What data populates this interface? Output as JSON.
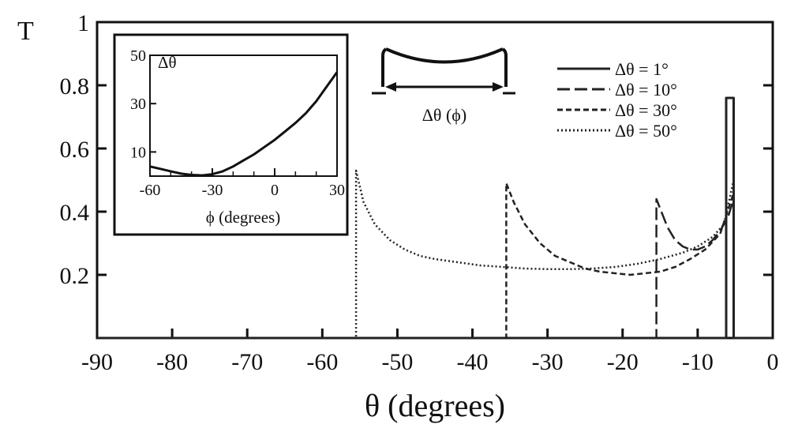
{
  "chart_data": {
    "type": "line",
    "xlabel": "θ (degrees)",
    "ylabel": "T",
    "xlim": [
      -90,
      0
    ],
    "ylim": [
      0,
      1
    ],
    "x_ticks": [
      -90,
      -80,
      -70,
      -60,
      -50,
      -40,
      -30,
      -20,
      -10,
      0
    ],
    "y_ticks": [
      1,
      0.8,
      0.6,
      0.4,
      0.2
    ],
    "y_tick_labels": [
      "1",
      "0.8",
      "0.6",
      "0.4",
      "0.2"
    ],
    "grid": false,
    "legend_position": "top-right",
    "series": [
      {
        "name": "Δθ = 1°",
        "style": "solid",
        "x": [
          -90,
          -6.2,
          -6.2,
          -6.0,
          -5.5,
          -5.2,
          -5.2,
          0
        ],
        "y": [
          0,
          0,
          0.76,
          0.76,
          0.76,
          0.76,
          0,
          0
        ]
      },
      {
        "name": "Δθ = 10°",
        "style": "long-dash",
        "x": [
          -90,
          -15.5,
          -15.5,
          -15.0,
          -14.0,
          -13.0,
          -12.0,
          -11.0,
          -10.0,
          -9.0,
          -8.0,
          -7.0,
          -6.0,
          -5.2,
          -5.2,
          0
        ],
        "y": [
          0,
          0,
          0.44,
          0.41,
          0.35,
          0.31,
          0.29,
          0.28,
          0.28,
          0.29,
          0.31,
          0.34,
          0.38,
          0.44,
          0,
          0
        ]
      },
      {
        "name": "Δθ = 30°",
        "style": "short-dash",
        "x": [
          -90,
          -35.5,
          -35.5,
          -34.5,
          -33.0,
          -31.0,
          -29.0,
          -27.0,
          -25.0,
          -23.0,
          -21.0,
          -19.0,
          -17.0,
          -15.0,
          -13.0,
          -11.0,
          -9.0,
          -7.0,
          -5.2,
          -5.2,
          0
        ],
        "y": [
          0,
          0,
          0.49,
          0.43,
          0.36,
          0.3,
          0.26,
          0.24,
          0.22,
          0.21,
          0.205,
          0.2,
          0.205,
          0.21,
          0.225,
          0.25,
          0.28,
          0.33,
          0.46,
          0,
          0
        ]
      },
      {
        "name": "Δθ = 50°",
        "style": "dotted",
        "x": [
          -90,
          -55.5,
          -55.5,
          -54.5,
          -53.0,
          -51.0,
          -49.0,
          -47.0,
          -45.0,
          -42.0,
          -39.0,
          -36.0,
          -33.0,
          -30.0,
          -27.0,
          -24.0,
          -21.0,
          -18.0,
          -15.0,
          -12.0,
          -10.0,
          -8.0,
          -6.5,
          -5.2,
          -5.2,
          0
        ],
        "y": [
          0,
          0,
          0.53,
          0.43,
          0.36,
          0.31,
          0.28,
          0.26,
          0.25,
          0.24,
          0.23,
          0.225,
          0.22,
          0.218,
          0.218,
          0.22,
          0.225,
          0.235,
          0.25,
          0.27,
          0.29,
          0.32,
          0.36,
          0.5,
          0,
          0
        ]
      }
    ],
    "legend": [
      "Δθ = 1°",
      "Δθ = 10°",
      "Δθ = 30°",
      "Δθ = 50°"
    ],
    "schematic_label": "Δθ (ϕ)",
    "inset": {
      "type": "line",
      "xlabel": "ϕ (degrees)",
      "ylabel": "Δθ",
      "xlim": [
        -60,
        30
      ],
      "ylim": [
        0,
        50
      ],
      "x_ticks": [
        -60,
        -30,
        0,
        30
      ],
      "y_ticks": [
        50,
        30,
        10
      ],
      "series": [
        {
          "style": "solid",
          "x": [
            -60,
            -55,
            -50,
            -45,
            -40,
            -35,
            -30,
            -25,
            -20,
            -15,
            -10,
            -5,
            0,
            5,
            10,
            15,
            20,
            25,
            30
          ],
          "y": [
            4,
            3,
            2,
            1,
            0.5,
            0.3,
            0.8,
            2,
            4,
            6.5,
            9,
            12,
            15,
            18.5,
            22,
            26,
            31,
            37,
            43
          ]
        }
      ]
    }
  }
}
